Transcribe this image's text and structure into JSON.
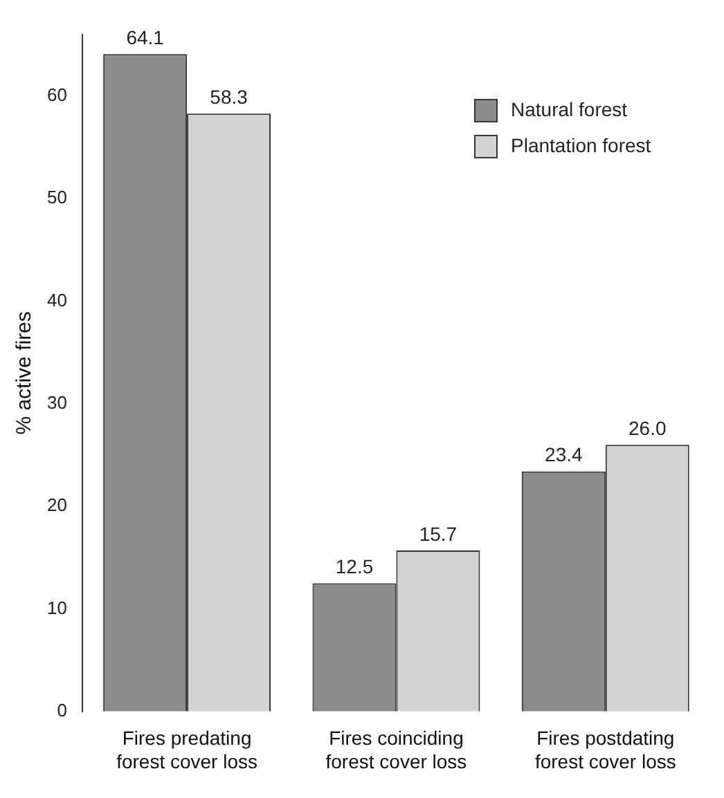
{
  "chart_data": {
    "type": "bar",
    "ylabel": "% active fires",
    "categories": [
      "Fires predating\nforest cover loss",
      "Fires coinciding\nforest cover loss",
      "Fires postdating\nforest cover loss"
    ],
    "series": [
      {
        "name": "Natural forest",
        "color": "#8c8c8c",
        "values": [
          64.1,
          12.5,
          23.4
        ],
        "value_labels": [
          "64.1",
          "12.5",
          "23.4"
        ]
      },
      {
        "name": "Plantation forest",
        "color": "#d3d3d3",
        "values": [
          58.3,
          15.7,
          26.0
        ],
        "value_labels": [
          "58.3",
          "15.7",
          "26.0"
        ]
      }
    ],
    "ylim": [
      0,
      66
    ],
    "yticks": [
      0,
      10,
      20,
      30,
      40,
      50,
      60
    ],
    "legend": "top right",
    "grid": false
  }
}
